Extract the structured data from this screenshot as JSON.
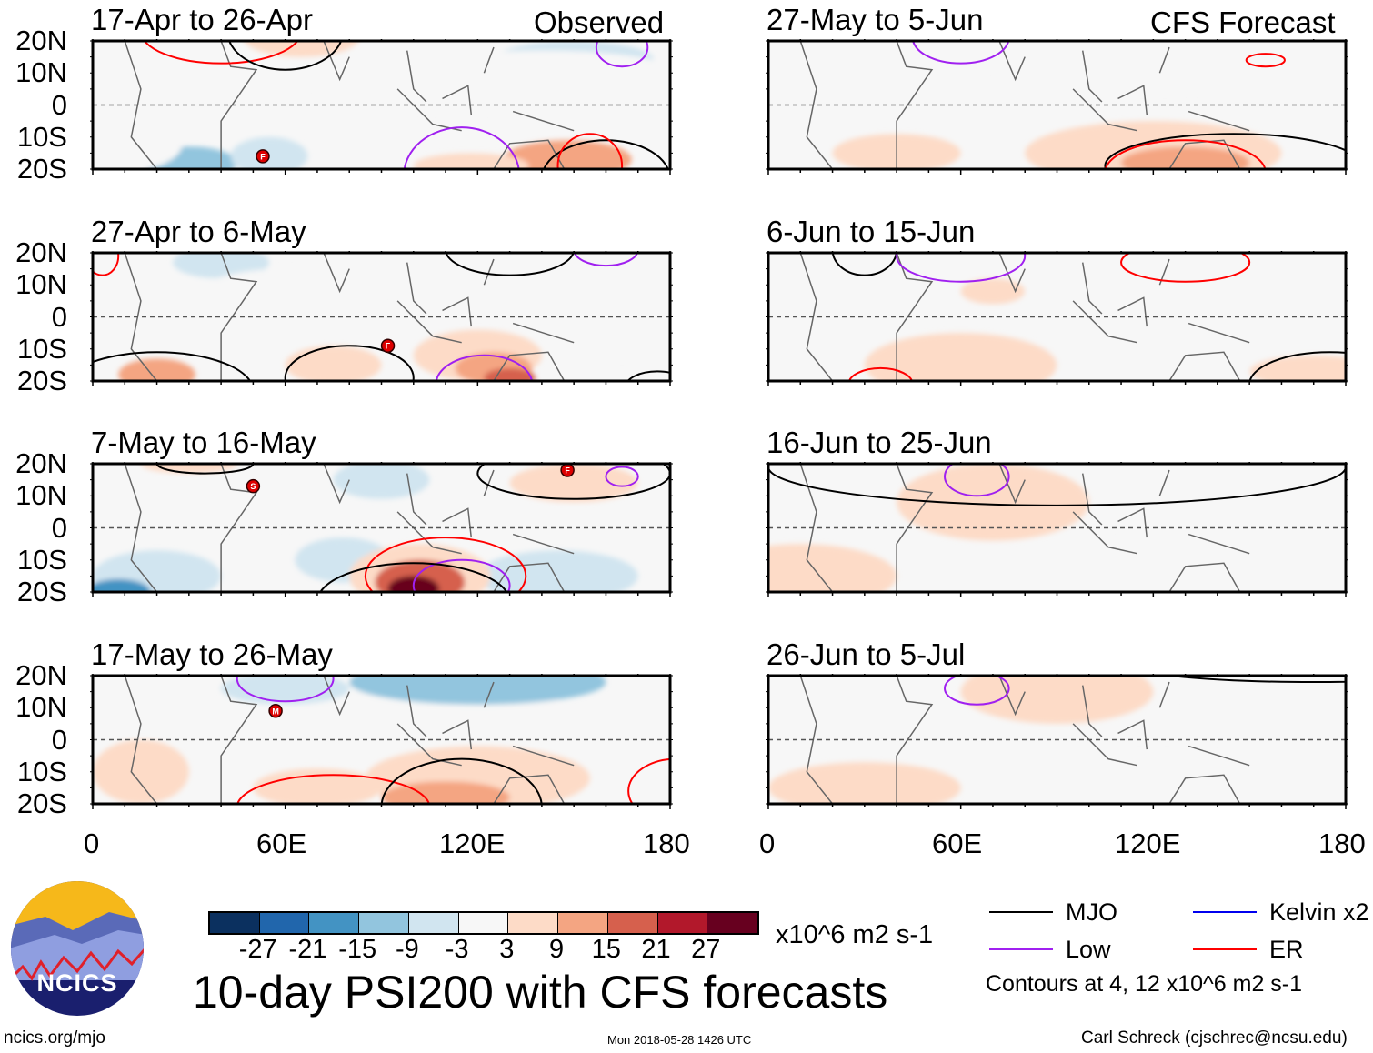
{
  "title": "10-day PSI200 with CFS forecasts",
  "labels": {
    "observed": "Observed",
    "forecast": "CFS Forecast"
  },
  "footer": {
    "left": "ncics.org/mjo",
    "center": "Mon 2018-05-28 1426 UTC",
    "right": "Carl Schreck (cjschrec@ncsu.edu)"
  },
  "logo": {
    "text": "NCICS"
  },
  "colorbar": {
    "units": "x10^6 m2 s-1",
    "ticks": [
      "-27",
      "-21",
      "-15",
      "-9",
      "-3",
      "3",
      "9",
      "15",
      "21",
      "27"
    ],
    "colors": [
      "#0b305f",
      "#2166ac",
      "#4393c3",
      "#92c5de",
      "#d1e5f0",
      "#f7f7f7",
      "#fddbc7",
      "#f4a582",
      "#d6604d",
      "#b2182b",
      "#67001f"
    ]
  },
  "legend": {
    "items": [
      {
        "label": "MJO",
        "color": "#000000"
      },
      {
        "label": "Kelvin x2",
        "color": "#0000ee"
      },
      {
        "label": "Low",
        "color": "#a020f0"
      },
      {
        "label": "ER",
        "color": "#ff0000"
      }
    ],
    "note": "Contours at 4, 12 x10^6 m2 s-1"
  },
  "chart_data": {
    "type": "heatmap",
    "xlim": [
      0,
      180
    ],
    "ylim": [
      -20,
      20
    ],
    "xticks": [
      "0",
      "60E",
      "120E",
      "180"
    ],
    "yticks": [
      "20N",
      "10N",
      "0",
      "10S",
      "20S"
    ],
    "panels": [
      {
        "title": "17-Apr to 26-Apr",
        "source": "Observed",
        "anoms": [
          [
            150,
            14,
            25,
            6,
            -9
          ],
          [
            140,
            9,
            45,
            8,
            -3
          ],
          [
            30,
            -18,
            15,
            5,
            -15
          ],
          [
            55,
            -16,
            12,
            6,
            -9
          ],
          [
            8,
            -12,
            20,
            9,
            -3
          ],
          [
            115,
            3,
            45,
            5,
            -3
          ],
          [
            65,
            21,
            18,
            6,
            3
          ],
          [
            148,
            -17,
            20,
            6,
            9
          ],
          [
            118,
            -19,
            18,
            4,
            3
          ]
        ],
        "contours": [
          [
            40,
            23,
            25,
            10,
            "ER"
          ],
          [
            60,
            23,
            18,
            12,
            "MJO"
          ],
          [
            165,
            18,
            8,
            6,
            "Low"
          ],
          [
            115,
            -22,
            18,
            15,
            "Low"
          ],
          [
            160,
            -23,
            20,
            12,
            "MJO"
          ],
          [
            155,
            -19,
            10,
            10,
            "ER"
          ]
        ],
        "storms": [
          [
            53,
            -16,
            "F"
          ]
        ]
      },
      {
        "title": "27-Apr to 6-May",
        "source": "Observed",
        "anoms": [
          [
            40,
            17,
            15,
            5,
            -9
          ],
          [
            60,
            5,
            30,
            10,
            -3
          ],
          [
            165,
            -5,
            20,
            8,
            -3
          ],
          [
            20,
            -18,
            12,
            5,
            9
          ],
          [
            75,
            -15,
            15,
            6,
            3
          ],
          [
            120,
            -12,
            20,
            8,
            3
          ],
          [
            125,
            -16,
            12,
            5,
            9
          ],
          [
            130,
            -19,
            8,
            3,
            15
          ]
        ],
        "contours": [
          [
            20,
            -23,
            30,
            12,
            "MJO"
          ],
          [
            80,
            -19,
            20,
            10,
            "MJO"
          ],
          [
            130,
            21,
            20,
            8,
            "MJO"
          ],
          [
            160,
            21,
            10,
            5,
            "Low"
          ],
          [
            122,
            -21,
            15,
            9,
            "Low"
          ],
          [
            176,
            -22,
            10,
            5,
            "MJO"
          ],
          [
            3,
            19,
            5,
            6,
            "ER"
          ]
        ],
        "storms": [
          [
            92,
            -9,
            "F"
          ]
        ]
      },
      {
        "title": "7-May to 16-May",
        "source": "Observed",
        "anoms": [
          [
            90,
            15,
            15,
            6,
            -9
          ],
          [
            60,
            -12,
            20,
            8,
            -3
          ],
          [
            145,
            -15,
            25,
            8,
            -9
          ],
          [
            20,
            -15,
            20,
            8,
            -9
          ],
          [
            8,
            -20,
            10,
            4,
            -21
          ],
          [
            78,
            -10,
            15,
            7,
            -9
          ],
          [
            150,
            14,
            20,
            6,
            3
          ],
          [
            30,
            20,
            15,
            3,
            3
          ],
          [
            102,
            -15,
            22,
            10,
            3
          ],
          [
            102,
            -17,
            14,
            7,
            15
          ],
          [
            100,
            -19,
            8,
            4,
            27
          ]
        ],
        "contours": [
          [
            110,
            -15,
            25,
            12,
            "ER"
          ],
          [
            115,
            -18,
            15,
            8,
            "Low"
          ],
          [
            100,
            -23,
            30,
            12,
            "MJO"
          ],
          [
            150,
            17,
            30,
            8,
            "MJO"
          ],
          [
            165,
            16,
            5,
            3,
            "Low"
          ],
          [
            35,
            20,
            15,
            3,
            "MJO"
          ]
        ],
        "storms": [
          [
            50,
            13,
            "S"
          ],
          [
            148,
            18,
            "F"
          ]
        ]
      },
      {
        "title": "17-May to 26-May",
        "source": "Observed",
        "anoms": [
          [
            100,
            12,
            45,
            10,
            -3
          ],
          [
            120,
            18,
            40,
            7,
            -15
          ],
          [
            60,
            16,
            20,
            5,
            -9
          ],
          [
            120,
            -12,
            35,
            10,
            3
          ],
          [
            110,
            -18,
            20,
            5,
            9
          ],
          [
            15,
            -10,
            15,
            10,
            3
          ],
          [
            70,
            -15,
            20,
            6,
            3
          ]
        ],
        "contours": [
          [
            75,
            -21,
            30,
            10,
            "ER"
          ],
          [
            115,
            -21,
            25,
            15,
            "MJO"
          ],
          [
            60,
            19,
            15,
            7,
            "Low"
          ],
          [
            182,
            -16,
            15,
            10,
            "ER"
          ]
        ],
        "storms": [
          [
            57,
            9,
            "M"
          ]
        ]
      },
      {
        "title": "27-May to 5-Jun",
        "source": "CFS Forecast",
        "anoms": [
          [
            120,
            12,
            50,
            8,
            -3
          ],
          [
            40,
            17,
            30,
            5,
            -3
          ],
          [
            120,
            -15,
            40,
            10,
            3
          ],
          [
            130,
            -18,
            20,
            5,
            9
          ],
          [
            40,
            -15,
            20,
            6,
            3
          ]
        ],
        "contours": [
          [
            60,
            21,
            15,
            8,
            "Low"
          ],
          [
            155,
            14,
            6,
            2,
            "ER"
          ],
          [
            145,
            -19,
            40,
            10,
            "MJO"
          ],
          [
            130,
            -21,
            25,
            10,
            "ER"
          ]
        ],
        "storms": []
      },
      {
        "title": "6-Jun to 15-Jun",
        "source": "CFS Forecast",
        "anoms": [
          [
            120,
            5,
            40,
            12,
            -3
          ],
          [
            130,
            -12,
            50,
            8,
            -3
          ],
          [
            60,
            -15,
            30,
            10,
            3
          ],
          [
            70,
            8,
            10,
            4,
            3
          ],
          [
            170,
            -17,
            20,
            5,
            3
          ]
        ],
        "contours": [
          [
            30,
            21,
            10,
            8,
            "MJO"
          ],
          [
            60,
            19,
            20,
            8,
            "Low"
          ],
          [
            130,
            17,
            20,
            6,
            "ER"
          ],
          [
            175,
            -21,
            25,
            10,
            "MJO"
          ],
          [
            35,
            -21,
            10,
            5,
            "ER"
          ]
        ],
        "storms": []
      },
      {
        "title": "16-Jun to 25-Jun",
        "source": "CFS Forecast",
        "anoms": [
          [
            150,
            0,
            40,
            20,
            -3
          ],
          [
            70,
            8,
            30,
            12,
            3
          ],
          [
            10,
            -15,
            30,
            10,
            3
          ]
        ],
        "contours": [
          [
            90,
            19,
            90,
            12,
            "MJO"
          ],
          [
            65,
            16,
            10,
            6,
            "Low"
          ]
        ],
        "storms": []
      },
      {
        "title": "26-Jun to 5-Jul",
        "source": "CFS Forecast",
        "anoms": [
          [
            120,
            -12,
            60,
            8,
            -3
          ],
          [
            160,
            10,
            30,
            8,
            -3
          ],
          [
            90,
            15,
            30,
            10,
            3
          ],
          [
            30,
            -15,
            30,
            8,
            3
          ]
        ],
        "contours": [
          [
            170,
            24,
            60,
            6,
            "MJO"
          ],
          [
            65,
            16,
            10,
            5,
            "Low"
          ]
        ],
        "storms": []
      }
    ]
  }
}
